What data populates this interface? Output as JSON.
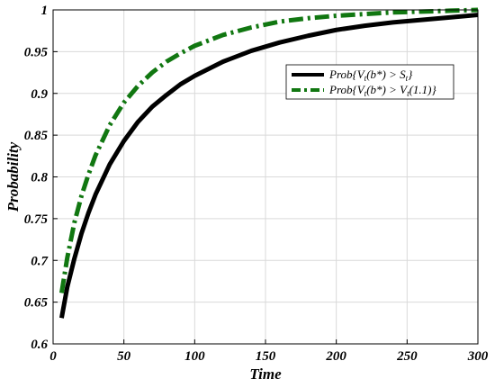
{
  "chart_data": {
    "type": "line",
    "title": "",
    "xlabel": "Time",
    "ylabel": "Probability",
    "xlim": [
      0,
      300
    ],
    "ylim": [
      0.6,
      1
    ],
    "xticks": [
      0,
      50,
      100,
      150,
      200,
      250,
      300
    ],
    "yticks": [
      0.6,
      0.65,
      0.7,
      0.75,
      0.8,
      0.85,
      0.9,
      0.95,
      1
    ],
    "xtick_labels": [
      "0",
      "50",
      "100",
      "150",
      "200",
      "250",
      "300"
    ],
    "ytick_labels": [
      "0.6",
      "0.65",
      "0.7",
      "0.75",
      "0.8",
      "0.85",
      "0.9",
      "0.95",
      "1"
    ],
    "grid": true,
    "legend_position": "top-right",
    "series": [
      {
        "name": "Prob{Vt(b*) > St}",
        "legend": {
          "pre": "Prob{V",
          "sub1": "t",
          "mid": "(b*) > S",
          "sub2": "t",
          "post": "}"
        },
        "color": "#000000",
        "style": "solid",
        "x": [
          6,
          10,
          15,
          20,
          25,
          30,
          40,
          50,
          60,
          70,
          80,
          90,
          100,
          120,
          140,
          160,
          180,
          200,
          220,
          240,
          260,
          280,
          300
        ],
        "y": [
          0.631,
          0.668,
          0.702,
          0.732,
          0.757,
          0.779,
          0.815,
          0.843,
          0.866,
          0.884,
          0.898,
          0.911,
          0.921,
          0.938,
          0.951,
          0.961,
          0.969,
          0.976,
          0.981,
          0.985,
          0.988,
          0.991,
          0.994
        ]
      },
      {
        "name": "Prob{Vt(b*) > Vt(1.1)}",
        "legend": {
          "pre": "Prob{V",
          "sub1": "t",
          "mid": "(b*) > V",
          "sub2": "t",
          "post": "(1.1)}"
        },
        "color": "#117711",
        "style": "dashdot",
        "x": [
          6,
          10,
          15,
          20,
          25,
          30,
          40,
          50,
          60,
          70,
          80,
          90,
          100,
          120,
          140,
          160,
          180,
          200,
          220,
          240,
          260,
          280,
          300
        ],
        "y": [
          0.661,
          0.703,
          0.745,
          0.777,
          0.803,
          0.826,
          0.862,
          0.889,
          0.909,
          0.925,
          0.938,
          0.948,
          0.957,
          0.97,
          0.979,
          0.986,
          0.99,
          0.993,
          0.995,
          0.997,
          0.998,
          0.999,
          1.0
        ]
      }
    ]
  }
}
